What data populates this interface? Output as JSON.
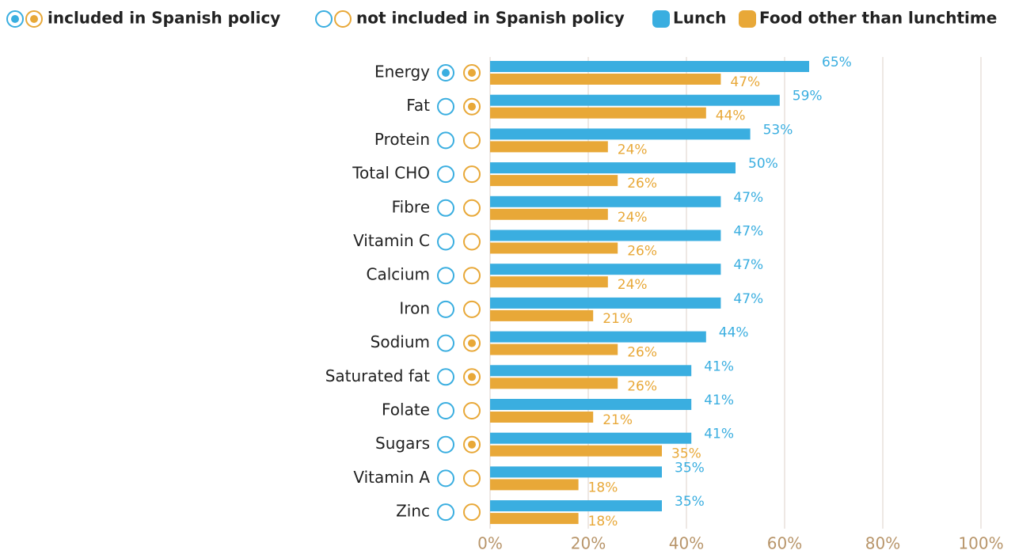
{
  "chart_data": {
    "type": "bar",
    "orientation": "horizontal",
    "policy_legend": {
      "included": "included in Spanish policy",
      "not_included": "not included in Spanish policy"
    },
    "categories": [
      "Energy",
      "Fat",
      "Protein",
      "Total CHO",
      "Fibre",
      "Vitamin C",
      "Calcium",
      "Iron",
      "Sodium",
      "Saturated fat",
      "Folate",
      "Sugars",
      "Vitamin A",
      "Zinc"
    ],
    "series": [
      {
        "name": "Lunch",
        "color": "#3aaee0",
        "values": [
          65,
          59,
          53,
          50,
          47,
          47,
          47,
          47,
          44,
          41,
          41,
          41,
          35,
          35
        ],
        "value_labels": [
          "65%",
          "59%",
          "53%",
          "50%",
          "47%",
          "47%",
          "47%",
          "47%",
          "44%",
          "41%",
          "41%",
          "41%",
          "35%",
          "35%"
        ],
        "included": [
          true,
          false,
          false,
          false,
          false,
          false,
          false,
          false,
          false,
          false,
          false,
          false,
          false,
          false
        ]
      },
      {
        "name": "Food other than lunchtime",
        "color": "#e8a838",
        "values": [
          47,
          44,
          24,
          26,
          24,
          26,
          24,
          21,
          26,
          26,
          21,
          35,
          18,
          18
        ],
        "value_labels": [
          "47%",
          "44%",
          "24%",
          "26%",
          "24%",
          "26%",
          "24%",
          "21%",
          "26%",
          "26%",
          "21%",
          "35%",
          "18%",
          "18%"
        ],
        "included": [
          true,
          true,
          false,
          false,
          false,
          false,
          false,
          false,
          true,
          true,
          false,
          true,
          false,
          false
        ]
      }
    ],
    "xlim": [
      0,
      100
    ],
    "xticks": [
      {
        "value": 0,
        "label": "0%"
      },
      {
        "value": 20,
        "label": "20%"
      },
      {
        "value": 40,
        "label": "40%"
      },
      {
        "value": 60,
        "label": "60%"
      },
      {
        "value": 80,
        "label": "80%"
      },
      {
        "value": 100,
        "label": "100%"
      }
    ],
    "grid": true
  }
}
